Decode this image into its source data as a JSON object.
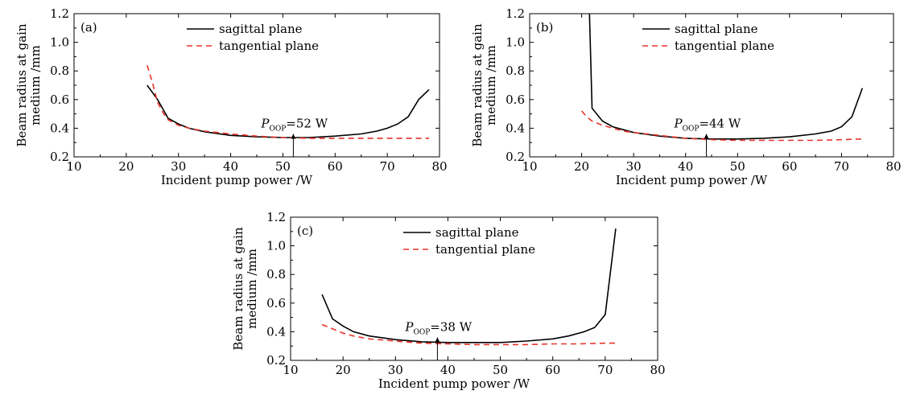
{
  "colors": {
    "sagittal": "#000000",
    "tangential": "#e8332a"
  },
  "chart_data": [
    {
      "type": "line",
      "panel_label": "(a)",
      "xlabel": "Incident pump power /W",
      "ylabel_line1": "Beam radius at gain",
      "ylabel_line2": "medium /mm",
      "xlim": [
        10,
        80
      ],
      "ylim": [
        0.2,
        1.2
      ],
      "xticks": [
        "10",
        "20",
        "30",
        "40",
        "50",
        "60",
        "70",
        "80"
      ],
      "yticks": [
        "0.2",
        "0.4",
        "0.6",
        "0.8",
        "1.0",
        "1.2"
      ],
      "legend_position": "top-center",
      "annotation": {
        "var": "P",
        "sub": "OOP",
        "rest": "=52 W",
        "x": 52
      },
      "series": [
        {
          "name": "sagittal plane",
          "style": "solid",
          "x": [
            24,
            26,
            28,
            30,
            32,
            35,
            40,
            45,
            50,
            55,
            60,
            65,
            68,
            70,
            72,
            74,
            76,
            78
          ],
          "y": [
            0.7,
            0.6,
            0.47,
            0.43,
            0.4,
            0.375,
            0.35,
            0.34,
            0.335,
            0.335,
            0.345,
            0.36,
            0.38,
            0.4,
            0.43,
            0.48,
            0.6,
            0.67
          ]
        },
        {
          "name": "tangential plane",
          "style": "dashed",
          "x": [
            24,
            25,
            26,
            27,
            28,
            30,
            32,
            35,
            40,
            45,
            50,
            55,
            60,
            65,
            70,
            75,
            78
          ],
          "y": [
            0.84,
            0.72,
            0.58,
            0.51,
            0.46,
            0.42,
            0.4,
            0.38,
            0.36,
            0.345,
            0.335,
            0.33,
            0.33,
            0.33,
            0.33,
            0.33,
            0.33
          ]
        }
      ]
    },
    {
      "type": "line",
      "panel_label": "(b)",
      "xlabel": "Incident pump power /W",
      "ylabel_line1": "Beam radius at gain",
      "ylabel_line2": "medium /mm",
      "xlim": [
        10,
        80
      ],
      "ylim": [
        0.2,
        1.2
      ],
      "xticks": [
        "10",
        "20",
        "30",
        "40",
        "50",
        "60",
        "70",
        "80"
      ],
      "yticks": [
        "0.2",
        "0.4",
        "0.6",
        "0.8",
        "1.0",
        "1.2"
      ],
      "legend_position": "top-center",
      "annotation": {
        "var": "P",
        "sub": "OOP",
        "rest": "=44 W",
        "x": 44
      },
      "series": [
        {
          "name": "sagittal plane",
          "style": "solid",
          "x": [
            21.5,
            22,
            24,
            26,
            28,
            30,
            35,
            40,
            45,
            50,
            55,
            60,
            65,
            68,
            70,
            72,
            74
          ],
          "y": [
            1.2,
            0.54,
            0.45,
            0.41,
            0.39,
            0.37,
            0.345,
            0.33,
            0.325,
            0.325,
            0.33,
            0.34,
            0.36,
            0.38,
            0.41,
            0.48,
            0.68
          ]
        },
        {
          "name": "tangential plane",
          "style": "dashed",
          "x": [
            20,
            21,
            22,
            24,
            26,
            28,
            30,
            35,
            40,
            45,
            50,
            55,
            60,
            65,
            70,
            74
          ],
          "y": [
            0.52,
            0.48,
            0.45,
            0.42,
            0.4,
            0.38,
            0.37,
            0.35,
            0.33,
            0.32,
            0.315,
            0.315,
            0.315,
            0.315,
            0.32,
            0.325
          ]
        }
      ]
    },
    {
      "type": "line",
      "panel_label": "(c)",
      "xlabel": "Incident pump power /W",
      "ylabel_line1": "Beam radius at gain",
      "ylabel_line2": "medium /mm",
      "xlim": [
        10,
        80
      ],
      "ylim": [
        0.2,
        1.2
      ],
      "xticks": [
        "10",
        "20",
        "30",
        "40",
        "50",
        "60",
        "70",
        "80"
      ],
      "yticks": [
        "0.2",
        "0.4",
        "0.6",
        "0.8",
        "1.0",
        "1.2"
      ],
      "legend_position": "top-center",
      "annotation": {
        "var": "P",
        "sub": "OOP",
        "rest": "=38 W",
        "x": 38
      },
      "series": [
        {
          "name": "sagittal plane",
          "style": "solid",
          "x": [
            16,
            18,
            20,
            22,
            25,
            30,
            35,
            40,
            45,
            50,
            55,
            60,
            63,
            66,
            68,
            70,
            72
          ],
          "y": [
            0.66,
            0.49,
            0.44,
            0.4,
            0.37,
            0.345,
            0.33,
            0.325,
            0.325,
            0.325,
            0.335,
            0.35,
            0.37,
            0.4,
            0.43,
            0.52,
            1.12
          ]
        },
        {
          "name": "tangential plane",
          "style": "dashed",
          "x": [
            16,
            18,
            20,
            22,
            25,
            30,
            35,
            40,
            45,
            50,
            55,
            60,
            65,
            70,
            72
          ],
          "y": [
            0.45,
            0.42,
            0.39,
            0.37,
            0.35,
            0.335,
            0.32,
            0.315,
            0.31,
            0.31,
            0.31,
            0.315,
            0.315,
            0.32,
            0.32
          ]
        }
      ]
    }
  ]
}
